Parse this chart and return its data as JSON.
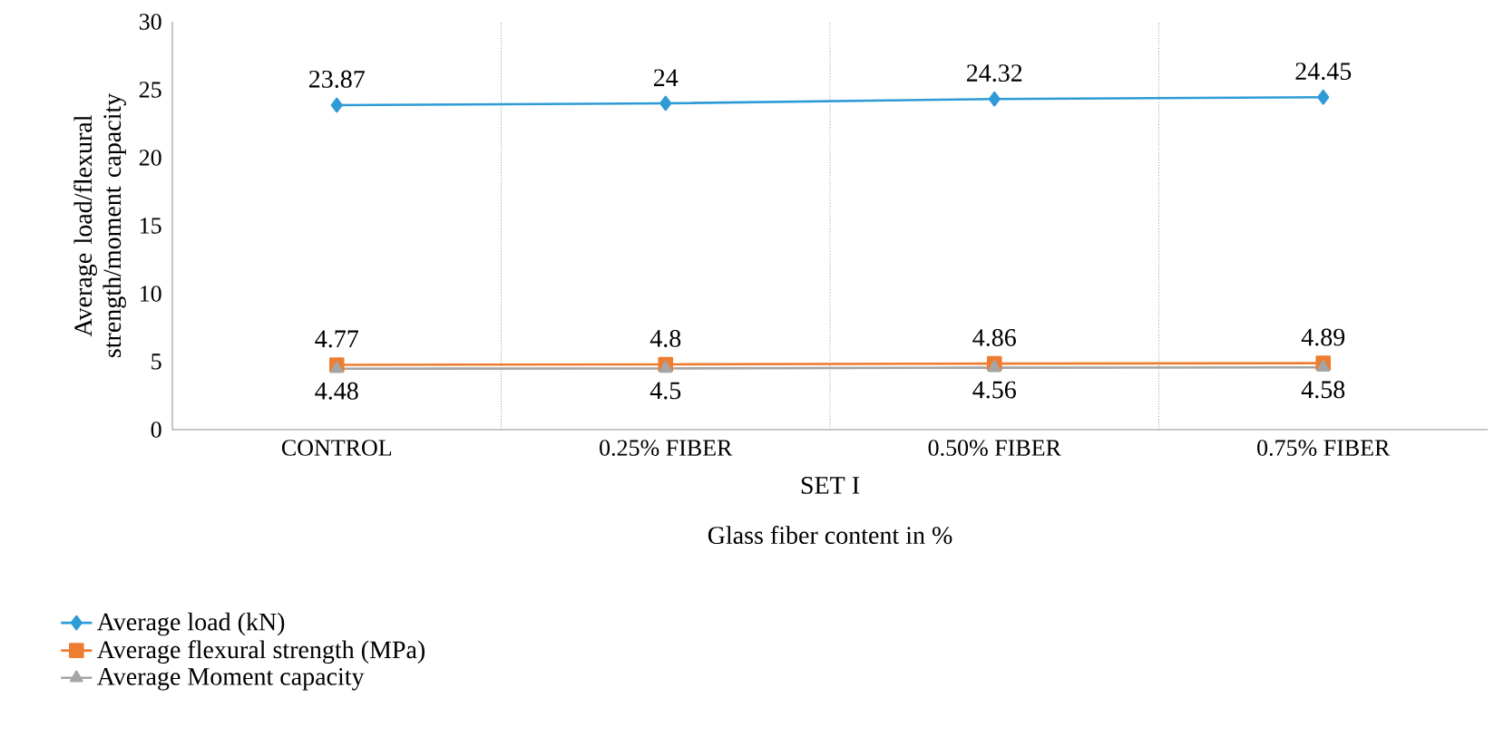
{
  "chart_data": {
    "type": "line",
    "xlabel": "Glass fiber content in %",
    "ylabel": "Average load/flexural strength/moment capacity",
    "categories": [
      "CONTROL",
      "0.25% FIBER",
      "0.50% FIBER",
      "0.75% FIBER"
    ],
    "series": [
      {
        "name": "Average load (kN)",
        "color": "#2e9bd6",
        "marker": "diamond",
        "values": [
          23.87,
          24,
          24.32,
          24.45
        ]
      },
      {
        "name": "Average flexural strength (MPa)",
        "color": "#ed7d31",
        "marker": "square",
        "values": [
          4.77,
          4.8,
          4.86,
          4.89
        ]
      },
      {
        "name": "Average Moment capacity",
        "color": "#a5a5a5",
        "marker": "triangle",
        "values": [
          4.48,
          4.5,
          4.56,
          4.58
        ]
      }
    ],
    "ylim": [
      0,
      30
    ],
    "yticks": [
      0,
      5,
      10,
      15,
      20,
      25,
      30
    ],
    "grid": "x",
    "data_labels": true,
    "legend": "bottom left",
    "annotations": [
      "SET I"
    ]
  }
}
